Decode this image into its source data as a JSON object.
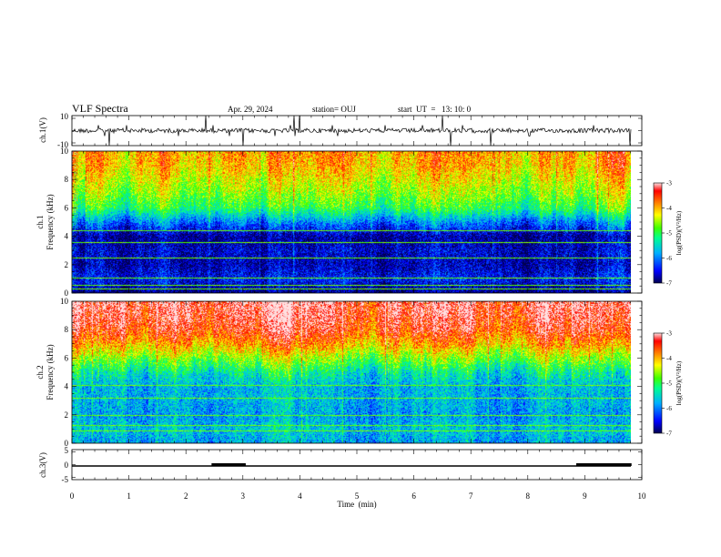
{
  "chart_data": {
    "type": "heatmap",
    "title": "VLF Spectra",
    "date": "Apr. 29, 2024",
    "station": "station= OUJ",
    "start_ut": "start  UT  =   13: 10: 0",
    "xlabel": "Time  (min)",
    "xlim": [
      0,
      10
    ],
    "x_ticks": [
      "0",
      "1",
      "2",
      "3",
      "4",
      "5",
      "6",
      "7",
      "8",
      "9",
      "10"
    ],
    "ch1_waveform": {
      "ylabel": "ch.1(V)",
      "ylim": [
        -10,
        10
      ],
      "y_ticks": [
        "10",
        "-10"
      ],
      "baseline": 0,
      "spike_times_min": [
        0.65,
        2.35,
        3.0,
        3.9,
        4.0,
        6.5,
        6.65,
        7.35,
        9.8
      ]
    },
    "ch1_spectrogram": {
      "ylabel_channel": "ch.1",
      "ylabel": "Frequency (kHz)",
      "ylim": [
        0,
        10
      ],
      "y_ticks": [
        "0",
        "2",
        "4",
        "6",
        "8",
        "10"
      ],
      "colorbar_label": "log(PSD)(V²/Hz)",
      "colorbar_range": [
        -7,
        -3
      ],
      "colorbar_ticks": [
        "-3",
        "-4",
        "-5",
        "-6",
        "-7"
      ],
      "band_profile": [
        {
          "f_khz": 0.0,
          "level": -6.9
        },
        {
          "f_khz": 1.0,
          "level": -6.4
        },
        {
          "f_khz": 2.0,
          "level": -6.7
        },
        {
          "f_khz": 3.0,
          "level": -6.6
        },
        {
          "f_khz": 4.0,
          "level": -6.8
        },
        {
          "f_khz": 5.0,
          "level": -6.0
        },
        {
          "f_khz": 6.0,
          "level": -5.0
        },
        {
          "f_khz": 7.0,
          "level": -4.6
        },
        {
          "f_khz": 8.0,
          "level": -4.3
        },
        {
          "f_khz": 9.0,
          "level": -4.0
        },
        {
          "f_khz": 10.0,
          "level": -3.9
        }
      ],
      "line_frequencies_khz": [
        0.3,
        0.6,
        1.1,
        2.5,
        3.6,
        4.4
      ]
    },
    "ch2_spectrogram": {
      "ylabel_channel": "ch.2",
      "ylabel": "Frequency (kHz)",
      "ylim": [
        0,
        10
      ],
      "y_ticks": [
        "0",
        "2",
        "4",
        "6",
        "8",
        "10"
      ],
      "colorbar_label": "log(PSD)(V²/Hz)",
      "colorbar_range": [
        -7,
        -3
      ],
      "colorbar_ticks": [
        "-3",
        "-4",
        "-5",
        "-6",
        "-7"
      ],
      "band_profile": [
        {
          "f_khz": 0.0,
          "level": -5.8
        },
        {
          "f_khz": 1.0,
          "level": -5.6
        },
        {
          "f_khz": 2.0,
          "level": -5.8
        },
        {
          "f_khz": 3.0,
          "level": -5.7
        },
        {
          "f_khz": 4.0,
          "level": -5.7
        },
        {
          "f_khz": 5.0,
          "level": -5.3
        },
        {
          "f_khz": 6.0,
          "level": -4.6
        },
        {
          "f_khz": 7.0,
          "level": -3.9
        },
        {
          "f_khz": 8.0,
          "level": -3.4
        },
        {
          "f_khz": 9.0,
          "level": -3.2
        },
        {
          "f_khz": 10.0,
          "level": -3.1
        }
      ],
      "line_frequencies_khz": [
        0.9,
        1.3,
        2.0,
        3.2,
        4.1
      ]
    },
    "ch3_trace": {
      "ylabel": "ch.3(V)",
      "ylim": [
        -5,
        5
      ],
      "y_ticks": [
        "5",
        "0",
        "-5"
      ],
      "baseline": 0,
      "high_intervals_min": [
        [
          2.45,
          3.05
        ],
        [
          8.85,
          9.82
        ]
      ]
    },
    "colormap": [
      "#1a0070",
      "#0000ff",
      "#00a0ff",
      "#00ffb0",
      "#40ff00",
      "#ffff00",
      "#ff8000",
      "#ff0000",
      "#ffd0d0"
    ]
  }
}
